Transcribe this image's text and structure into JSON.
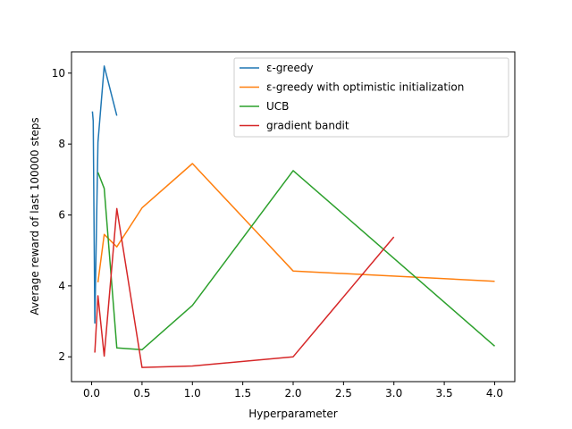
{
  "chart_data": {
    "type": "line",
    "title": "",
    "xlabel": "Hyperparameter",
    "ylabel": "Average reward of last 100000 steps",
    "xlim": [
      -0.2,
      4.2
    ],
    "ylim": [
      1.3,
      10.6
    ],
    "xticks": [
      "0.0",
      "0.5",
      "1.0",
      "1.5",
      "2.0",
      "2.5",
      "3.0",
      "3.5",
      "4.0"
    ],
    "yticks": [
      "2",
      "4",
      "6",
      "8",
      "10"
    ],
    "grid": false,
    "legend_position": "top-right",
    "series": [
      {
        "name": "ε-greedy",
        "color": "#1f77b4",
        "x": [
          0.0078125,
          0.015625,
          0.03125,
          0.0625,
          0.125,
          0.25
        ],
        "y": [
          8.92,
          8.65,
          2.95,
          8.05,
          10.2,
          8.8
        ]
      },
      {
        "name": "ε-greedy with optimistic initialization",
        "color": "#ff7f0e",
        "x": [
          0.0625,
          0.125,
          0.25,
          0.5,
          1,
          2,
          4
        ],
        "y": [
          4.1,
          5.45,
          5.1,
          6.2,
          7.45,
          4.42,
          4.13
        ]
      },
      {
        "name": "UCB",
        "color": "#2ca02c",
        "x": [
          0.0625,
          0.125,
          0.25,
          0.5,
          1,
          2,
          4
        ],
        "y": [
          7.2,
          6.75,
          2.25,
          2.2,
          3.45,
          7.25,
          2.3
        ]
      },
      {
        "name": "gradient bandit",
        "color": "#d62728",
        "x": [
          0.03125,
          0.0625,
          0.125,
          0.25,
          0.5,
          1,
          2,
          3
        ],
        "y": [
          2.12,
          3.72,
          2.02,
          6.18,
          1.7,
          1.74,
          2.0,
          5.38
        ]
      }
    ]
  }
}
